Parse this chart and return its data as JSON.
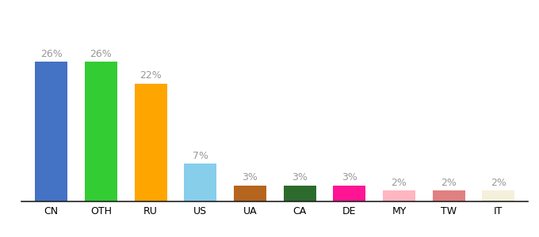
{
  "categories": [
    "CN",
    "OTH",
    "RU",
    "US",
    "UA",
    "CA",
    "DE",
    "MY",
    "TW",
    "IT"
  ],
  "values": [
    26,
    26,
    22,
    7,
    3,
    3,
    3,
    2,
    2,
    2
  ],
  "bar_colors": [
    "#4472c4",
    "#33cc33",
    "#ffa500",
    "#87ceeb",
    "#b5651d",
    "#2d6b2d",
    "#ff1493",
    "#ffb6c1",
    "#e08080",
    "#f5f0dc"
  ],
  "ylim": [
    0,
    34
  ],
  "background_color": "#ffffff",
  "bar_width": 0.65,
  "label_fontsize": 9,
  "tick_fontsize": 9,
  "label_color": "#999999"
}
